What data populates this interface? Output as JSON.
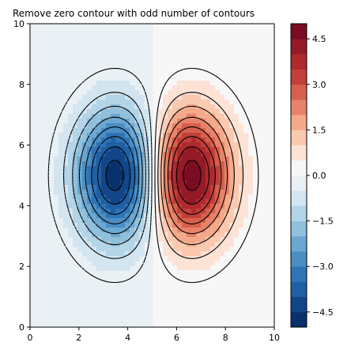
{
  "chart_data": {
    "type": "contour",
    "title": "Remove zero contour with odd number of contours",
    "xlabel": "",
    "ylabel": "",
    "xlim": [
      0,
      10
    ],
    "ylim": [
      0,
      10
    ],
    "x_ticks": [
      0,
      2,
      4,
      6,
      8,
      10
    ],
    "y_ticks": [
      0,
      2,
      4,
      6,
      8,
      10
    ],
    "grid": false,
    "colormap": "RdBu_r",
    "filled_levels": [
      -5.0,
      -4.5,
      -4.0,
      -3.5,
      -3.0,
      -2.5,
      -2.0,
      -1.5,
      -1.0,
      -0.5,
      0.0,
      0.5,
      1.0,
      1.5,
      2.0,
      2.5,
      3.0,
      3.5,
      4.0,
      4.5,
      5.0
    ],
    "fill_colors": [
      "#08306b",
      "#12468a",
      "#1f5fa3",
      "#2f75b6",
      "#4a8ec4",
      "#6ba7d0",
      "#91c0dd",
      "#b4d4e7",
      "#d2e5f0",
      "#eaf1f5",
      "#f7f7f7",
      "#fde3d6",
      "#fac9b0",
      "#f4a98a",
      "#e8836b",
      "#d6604d",
      "#c23f3a",
      "#ae2a2f",
      "#951a28",
      "#7a0d22"
    ],
    "line_levels": [
      -4.5,
      -3.9,
      -3.3,
      -2.7,
      -2.1,
      -1.5,
      -0.9,
      -0.3,
      0.3,
      0.9,
      1.5,
      2.1,
      2.7,
      3.3,
      3.9,
      4.5
    ],
    "negative_linestyle": "dashed",
    "positive_linestyle": "solid",
    "peaks": [
      {
        "x": 3.6,
        "y": 5.0,
        "value": -5.0,
        "sigma_x": 1.2,
        "sigma_y": 1.5
      },
      {
        "x": 6.5,
        "y": 5.0,
        "value": 5.0,
        "sigma_x": 1.2,
        "sigma_y": 1.5
      }
    ],
    "colorbar": {
      "ticks": [
        -4.5,
        -3.0,
        -1.5,
        0.0,
        1.5,
        3.0,
        4.5
      ],
      "tick_labels": [
        "−4.5",
        "−3.0",
        "−1.5",
        "0.0",
        "1.5",
        "3.0",
        "4.5"
      ],
      "range": [
        -5.0,
        5.0
      ],
      "location": "right"
    }
  }
}
